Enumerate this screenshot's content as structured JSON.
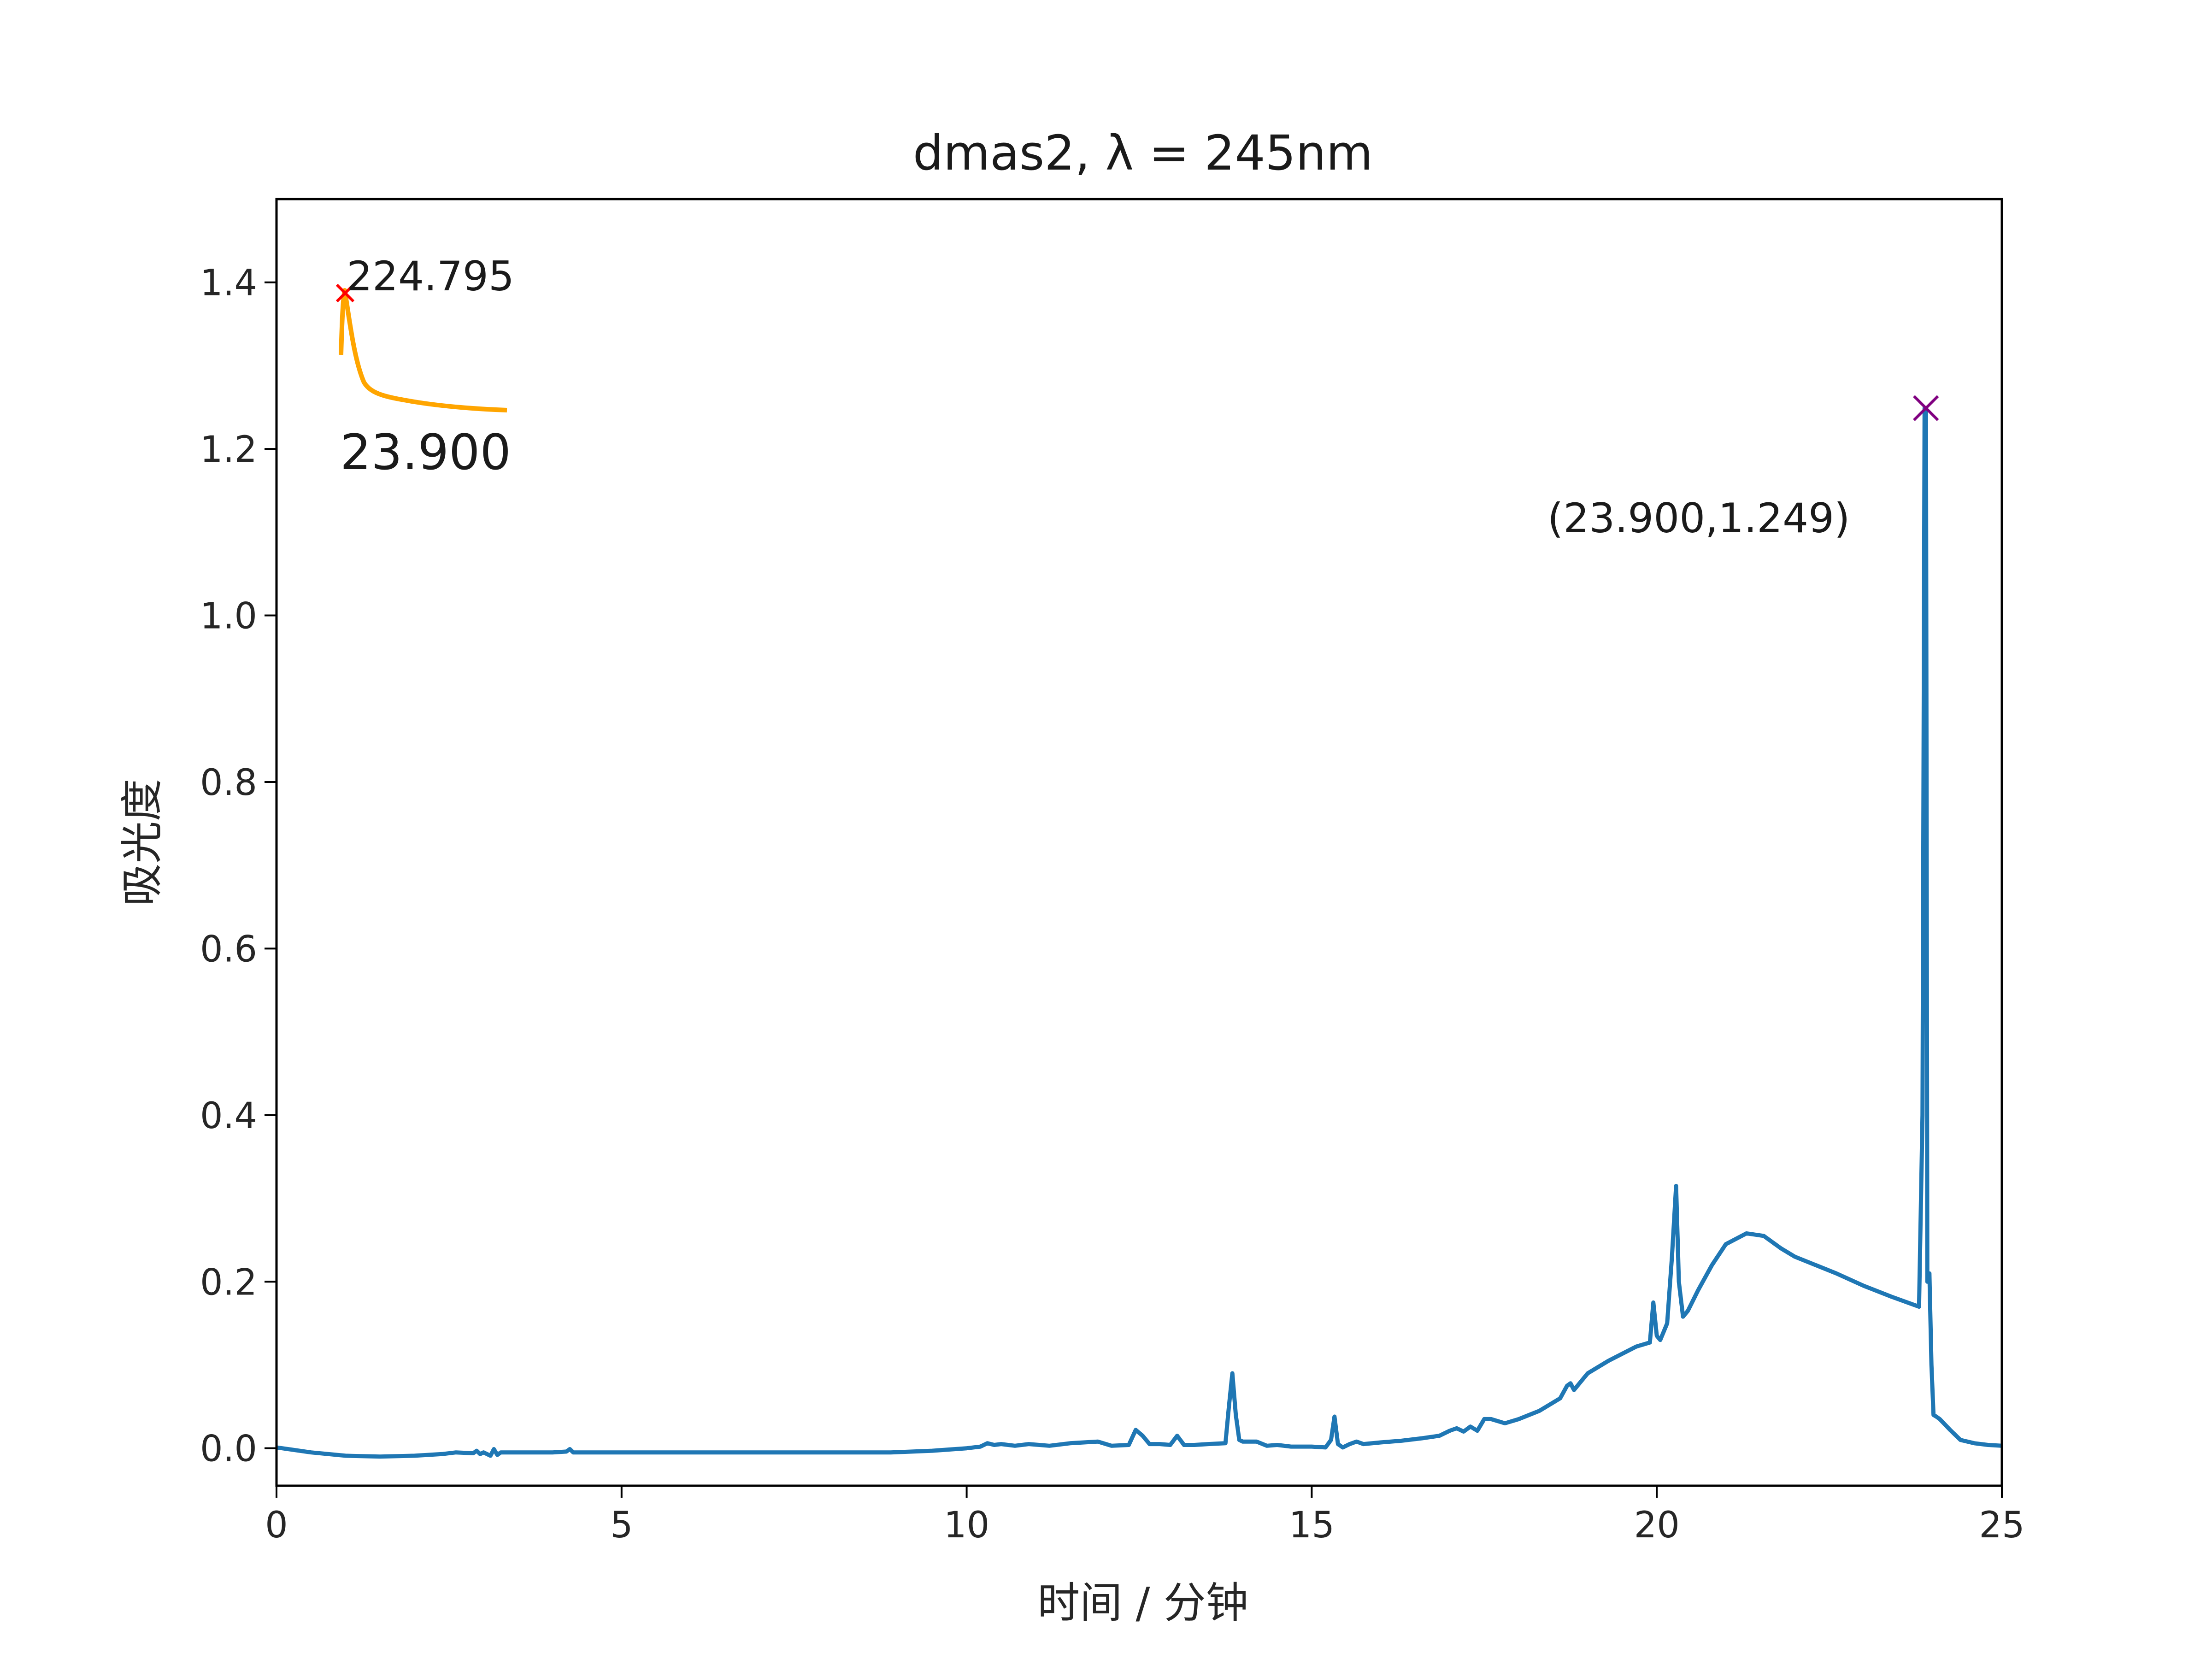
{
  "chart_data": {
    "type": "line",
    "title": "dmas2, λ = 245nm",
    "xlabel": "时间 / 分钟",
    "ylabel": "吸光度",
    "xlim": [
      0,
      25
    ],
    "ylim": [
      -0.045,
      1.5
    ],
    "x_ticks": [
      "0",
      "5",
      "10",
      "15",
      "20",
      "25"
    ],
    "y_ticks": [
      "0.0",
      "0.2",
      "0.4",
      "0.6",
      "0.8",
      "1.0",
      "1.2",
      "1.4"
    ],
    "grid": false,
    "colors": {
      "main_line": "#1f77b4",
      "peak_marker": "#800080",
      "inset_line": "#ffa500",
      "inset_marker": "#ff0000"
    },
    "series": [
      {
        "x": [
          0.0,
          0.5,
          1.0,
          1.5,
          2.0,
          2.4,
          2.6,
          2.85,
          2.9,
          2.95,
          3.0,
          3.1,
          3.15,
          3.2,
          3.25,
          3.5,
          4.0,
          4.2,
          4.25,
          4.3,
          5.0,
          6.0,
          7.0,
          8.0,
          8.9,
          9.5,
          10.0,
          10.2,
          10.3,
          10.4,
          10.5,
          10.7,
          10.9,
          11.2,
          11.5,
          11.7,
          11.9,
          12.1,
          12.35,
          12.45,
          12.55,
          12.65,
          12.8,
          12.95,
          13.05,
          13.15,
          13.3,
          13.5,
          13.75,
          13.8,
          13.85,
          13.9,
          13.95,
          14.0,
          14.2,
          14.35,
          14.5,
          14.7,
          15.0,
          15.2,
          15.28,
          15.33,
          15.38,
          15.45,
          15.55,
          15.65,
          15.75,
          16.0,
          16.3,
          16.6,
          16.85,
          17.0,
          17.1,
          17.2,
          17.3,
          17.4,
          17.5,
          17.6,
          17.8,
          18.0,
          18.3,
          18.6,
          18.7,
          18.75,
          18.8,
          19.0,
          19.3,
          19.7,
          19.9,
          19.95,
          20.0,
          20.05,
          20.15,
          20.22,
          20.28,
          20.32,
          20.38,
          20.45,
          20.6,
          20.8,
          21.0,
          21.3,
          21.55,
          21.8,
          22.0,
          22.3,
          22.6,
          23.0,
          23.4,
          23.8,
          23.85,
          23.88,
          23.9,
          23.92,
          23.95,
          23.98,
          24.01,
          24.05,
          24.1,
          24.25,
          24.4,
          24.6,
          24.8,
          25.0
        ],
        "y": [
          0.001,
          -0.005,
          -0.009,
          -0.01,
          -0.009,
          -0.007,
          -0.005,
          -0.006,
          -0.003,
          -0.007,
          -0.005,
          -0.009,
          -0.001,
          -0.008,
          -0.005,
          -0.005,
          -0.005,
          -0.004,
          -0.001,
          -0.005,
          -0.005,
          -0.005,
          -0.005,
          -0.005,
          -0.005,
          -0.003,
          0.0,
          0.002,
          0.006,
          0.004,
          0.005,
          0.003,
          0.005,
          0.003,
          0.006,
          0.007,
          0.008,
          0.003,
          0.004,
          0.022,
          0.015,
          0.005,
          0.005,
          0.004,
          0.015,
          0.004,
          0.004,
          0.005,
          0.006,
          0.05,
          0.09,
          0.04,
          0.01,
          0.008,
          0.008,
          0.003,
          0.004,
          0.002,
          0.002,
          0.001,
          0.01,
          0.038,
          0.005,
          0.001,
          0.005,
          0.008,
          0.005,
          0.007,
          0.009,
          0.012,
          0.015,
          0.021,
          0.024,
          0.02,
          0.026,
          0.021,
          0.035,
          0.035,
          0.03,
          0.035,
          0.045,
          0.06,
          0.075,
          0.078,
          0.07,
          0.09,
          0.105,
          0.122,
          0.127,
          0.175,
          0.135,
          0.13,
          0.15,
          0.23,
          0.315,
          0.2,
          0.158,
          0.165,
          0.19,
          0.22,
          0.245,
          0.258,
          0.255,
          0.24,
          0.23,
          0.22,
          0.21,
          0.195,
          0.182,
          0.17,
          0.4,
          1.249,
          1.249,
          0.2,
          0.21,
          0.1,
          0.04,
          0.038,
          0.035,
          0.022,
          0.01,
          0.006,
          0.004,
          0.003
        ]
      }
    ],
    "annotations": {
      "peak_point": {
        "x": 23.9,
        "y": 1.249,
        "label": "(23.900,1.249)"
      },
      "inset_top_label": "224.795",
      "inset_bottom_label": "23.900"
    }
  }
}
